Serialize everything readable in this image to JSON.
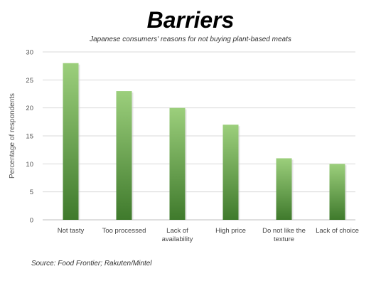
{
  "chart_data": {
    "type": "bar",
    "title": "Barriers",
    "subtitle": "Japanese consumers' reasons for not buying plant-based meats",
    "categories": [
      "Not tasty",
      "Too processed",
      "Lack of availability",
      "High price",
      "Do not like the texture",
      "Lack of choice"
    ],
    "category_lines": [
      [
        "Not tasty"
      ],
      [
        "Too processed"
      ],
      [
        "Lack of",
        "availability"
      ],
      [
        "High price"
      ],
      [
        "Do not like the",
        "texture"
      ],
      [
        "Lack of choice"
      ]
    ],
    "values": [
      28,
      23,
      20,
      17,
      11,
      10
    ],
    "xlabel": "",
    "ylabel": "Percentage of respondents",
    "ylim": [
      0,
      30
    ],
    "yticks": [
      0,
      5,
      10,
      15,
      20,
      25,
      30
    ],
    "grid": true,
    "legend": "none",
    "colors": {
      "bar_top": "#9ccf7c",
      "bar_bottom": "#3f7a2c",
      "grid": "#d9d9d9",
      "axis": "#bfbfbf"
    }
  },
  "source": "Source: Food Frontier; Rakuten/Mintel"
}
